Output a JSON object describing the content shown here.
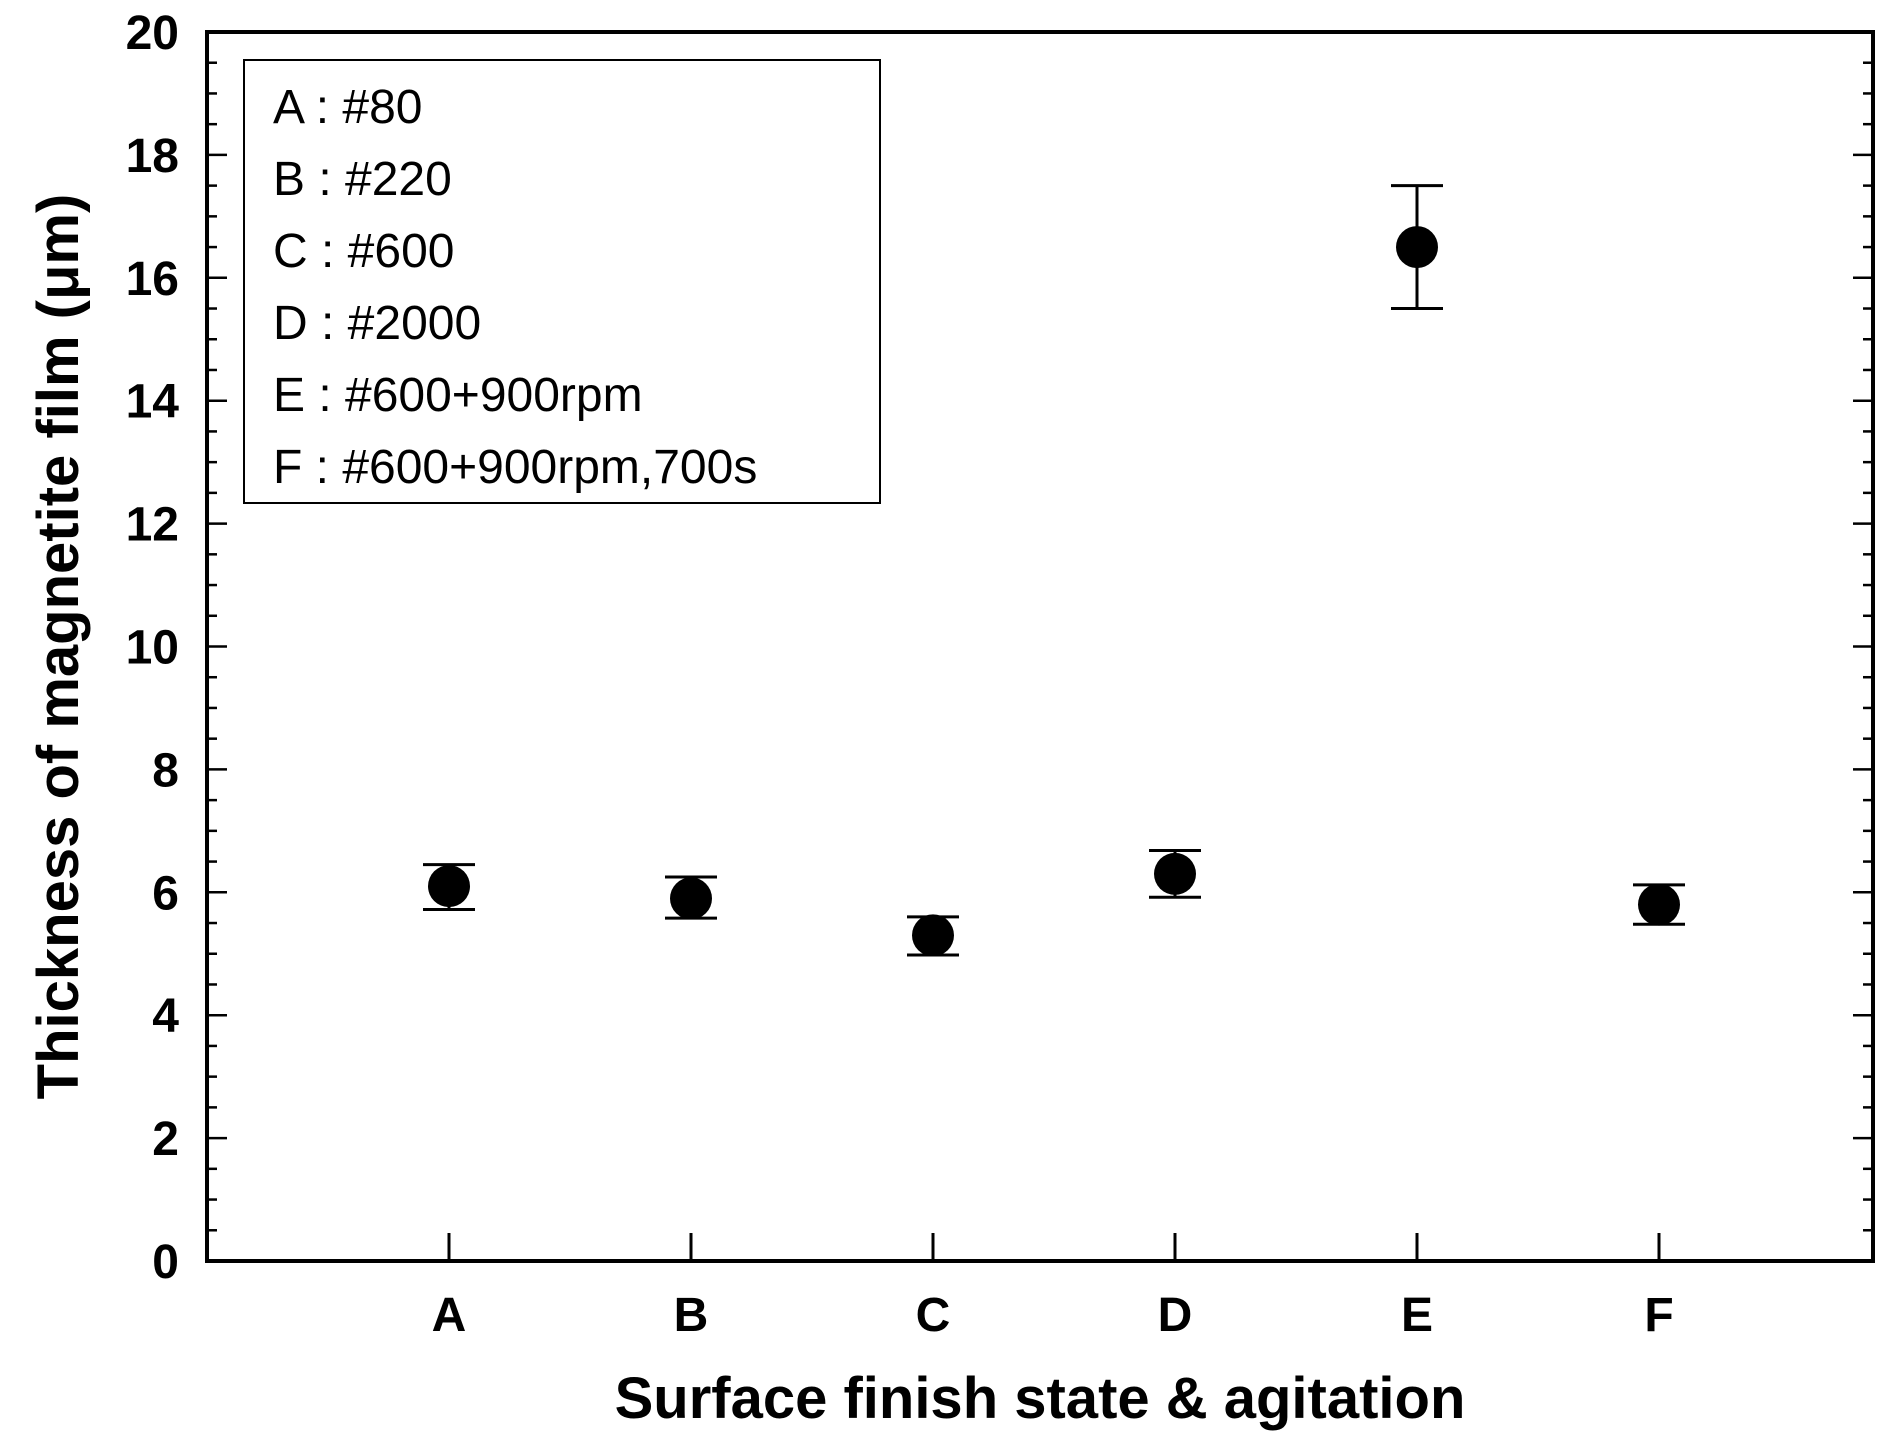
{
  "chart_data": {
    "type": "scatter",
    "xlabel": "Surface finish state & agitation",
    "ylabel": "Thickness of magnetite film (μm)",
    "categories": [
      "A",
      "B",
      "C",
      "D",
      "E",
      "F"
    ],
    "values": [
      6.1,
      5.9,
      5.3,
      6.3,
      16.5,
      5.8
    ],
    "error_low": [
      5.72,
      5.58,
      4.98,
      5.92,
      15.5,
      5.48
    ],
    "error_high": [
      6.45,
      6.25,
      5.6,
      6.68,
      17.5,
      6.12
    ],
    "ylim": [
      0,
      20
    ],
    "yticks": [
      "0",
      "2",
      "4",
      "6",
      "8",
      "10",
      "12",
      "14",
      "16",
      "18",
      "20"
    ],
    "grid": false,
    "legend_position": "top-left",
    "legend": [
      "A : #80",
      "B : #220",
      "C : #600",
      "D : #2000",
      "E : #600+900rpm",
      "F : #600+900rpm,700s"
    ],
    "marker_color": "#000000"
  }
}
